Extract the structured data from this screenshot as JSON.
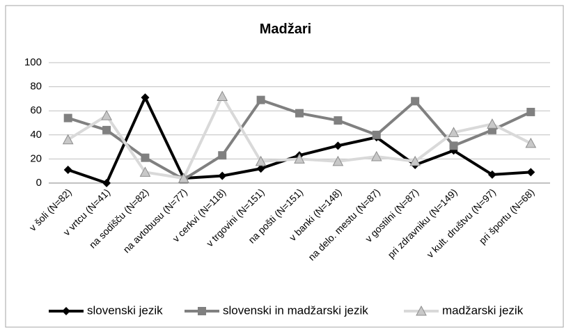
{
  "chart_data": {
    "type": "line",
    "title": "Madžari",
    "categories": [
      "v šoli (N=82)",
      "v vrtcu (N=41)",
      "na sodišču (N=82)",
      "na avtobusu (N=77)",
      "v cerkvi (N=118)",
      "v trgovini (N=151)",
      "na pošti (N=151)",
      "v banki (N=148)",
      "na delo. mestu (N=87)",
      "v gostilni (N=87)",
      "pri zdravniku (N=149)",
      "v kult. društvu (N=97)",
      "pri športu (N=68)"
    ],
    "series": [
      {
        "name": "slovenski jezik",
        "color": "#000000",
        "marker": "diamond",
        "values": [
          11,
          0,
          71,
          4,
          6,
          12,
          23,
          31,
          38,
          15,
          27,
          7,
          9
        ]
      },
      {
        "name": "slovenski in madžarski jezik",
        "color": "#808080",
        "marker": "square",
        "values": [
          54,
          44,
          21,
          3,
          23,
          69,
          58,
          52,
          40,
          68,
          31,
          44,
          59
        ]
      },
      {
        "name": "madžarski jezik",
        "color": "#d9d9d9",
        "marker": "triangle",
        "values": [
          36,
          56,
          9,
          4,
          72,
          18,
          20,
          18,
          22,
          18,
          42,
          49,
          33
        ]
      }
    ],
    "ylim": [
      0,
      100
    ],
    "yticks": [
      0,
      20,
      40,
      60,
      80,
      100
    ],
    "grid": true,
    "legend": "bottom"
  }
}
